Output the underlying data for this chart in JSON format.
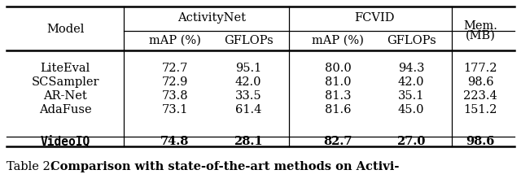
{
  "col_headers_row1": [
    "Model",
    "ActivityNet",
    "FCVID",
    "Mem."
  ],
  "col_headers_row2": [
    "mAP (%)",
    "GFLOPs",
    "mAP (%)",
    "GFLOPs",
    "(MB)"
  ],
  "rows": [
    [
      "LiteEval",
      "72.7",
      "95.1",
      "80.0",
      "94.3",
      "177.2"
    ],
    [
      "SCSampler",
      "72.9",
      "42.0",
      "81.0",
      "42.0",
      "98.6"
    ],
    [
      "AR-Net",
      "73.8",
      "33.5",
      "81.3",
      "35.1",
      "223.4"
    ],
    [
      "AdaFuse",
      "73.1",
      "61.4",
      "81.6",
      "45.0",
      "151.2"
    ],
    [
      "VideoIQ",
      "74.8",
      "28.1",
      "82.7",
      "27.0",
      "98.6"
    ]
  ],
  "caption_plain": "Table 2: ",
  "caption_bold": "Comparison with state-of-the-art methods on Activi-",
  "background_color": "#ffffff",
  "font_size": 10.5,
  "caption_font_size": 10.5
}
